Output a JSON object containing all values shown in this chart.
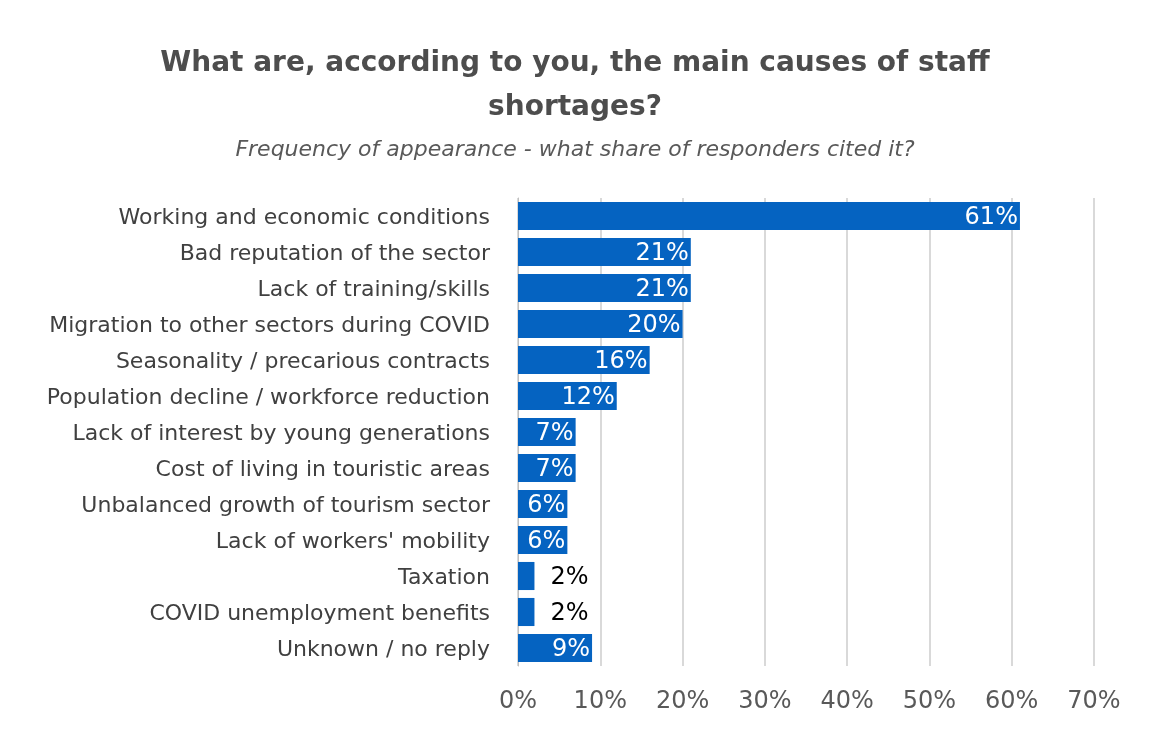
{
  "chart_data": {
    "type": "bar",
    "orientation": "horizontal",
    "title": "What are, according to you, the main causes of staff\nshortages?",
    "subtitle": "Frequency of appearance - what share of responders cited it?",
    "categories": [
      "Working and economic conditions",
      "Bad reputation of the sector",
      "Lack of training/skills",
      "Migration to other sectors during COVID",
      "Seasonality / precarious contracts",
      "Population decline / workforce reduction",
      "Lack of interest by young generations",
      "Cost of living in touristic areas",
      "Unbalanced growth of tourism sector",
      "Lack of workers' mobility",
      "Taxation",
      "COVID unemployment benefits",
      "Unknown / no reply"
    ],
    "values": [
      61,
      21,
      21,
      20,
      16,
      12,
      7,
      7,
      6,
      6,
      2,
      2,
      9
    ],
    "value_labels": [
      "61%",
      "21%",
      "21%",
      "20%",
      "16%",
      "12%",
      "7%",
      "7%",
      "6%",
      "6%",
      "2%",
      "2%",
      "9%"
    ],
    "color": "#0563c1",
    "xlim": [
      0,
      70
    ],
    "xticks": [
      {
        "value": 0,
        "label": "0%"
      },
      {
        "value": 10,
        "label": "10%"
      },
      {
        "value": 20,
        "label": "20%"
      },
      {
        "value": 30,
        "label": "30%"
      },
      {
        "value": 40,
        "label": "40%"
      },
      {
        "value": 50,
        "label": "50%"
      },
      {
        "value": 60,
        "label": "60%"
      },
      {
        "value": 70,
        "label": "70%"
      }
    ],
    "grid": "x"
  }
}
